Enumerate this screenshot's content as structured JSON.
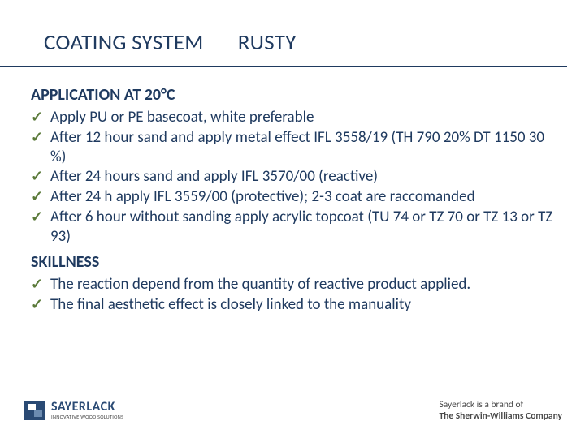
{
  "title": {
    "left": "COATING SYSTEM",
    "right": "RUSTY"
  },
  "section1_heading": "APPLICATION AT 20°C",
  "section1_items": [
    "Apply PU or PE basecoat, white preferable",
    "After 12 hour sand and apply metal effect IFL 3558/19 (TH 790 20% DT 1150  30 %)",
    "After 24 hours sand and apply IFL 3570/00 (reactive)",
    "After 24 h apply IFL 3559/00 (protective); 2-3 coat are raccomanded",
    "After 6 hour without sanding apply acrylic topcoat (TU 74 or TZ 70 or TZ 13 or TZ 93)"
  ],
  "section2_heading": "SKILLNESS",
  "section2_items": [
    "The reaction depend from the quantity of reactive product applied.",
    "The final aesthetic effect is closely linked to the manuality"
  ],
  "logo": {
    "brand": "SAYERLACK",
    "tagline": "INNOVATIVE WOOD SOLUTIONS"
  },
  "footer_right": {
    "line1": "Sayerlack is a brand of",
    "line2": "The Sherwin-Williams Company"
  },
  "colors": {
    "primary": "#1f3a5f",
    "check": "#5b7a3a",
    "logo": "#2a4a74"
  }
}
